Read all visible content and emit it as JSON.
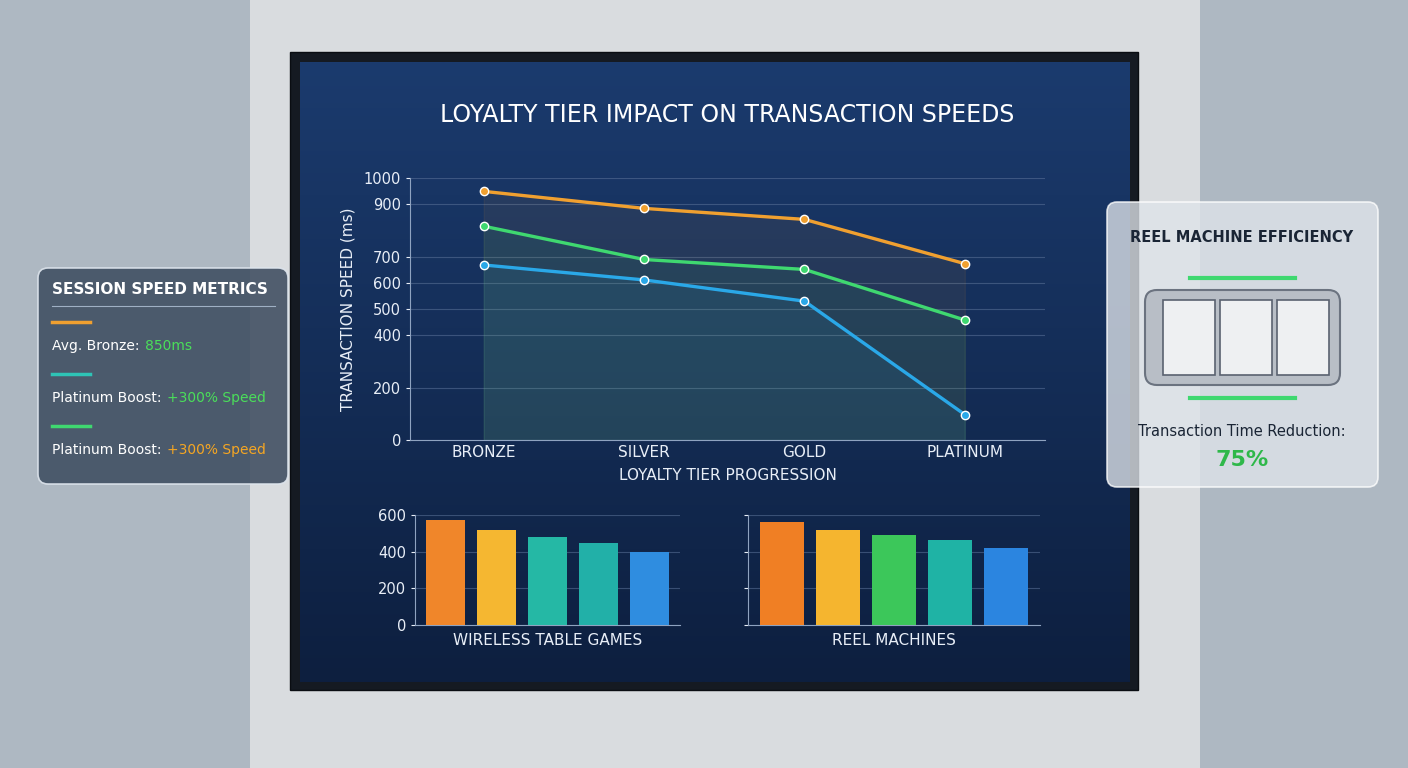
{
  "chart_data": [
    {
      "type": "line",
      "title": "LOYALTY TIER IMPACT ON TRANSACTION SPEEDS",
      "x_label": "LOYALTY TIER PROGRESSION",
      "y_label": "TRANSACTION SPEED (ms)",
      "categories": [
        "BRONZE",
        "SILVER",
        "GOLD",
        "PLATINUM"
      ],
      "series": [
        {
          "color": "#f0a030",
          "values": [
            949,
            884,
            842,
            673
          ]
        },
        {
          "color": "#3fd870",
          "values": [
            816,
            689,
            651,
            458
          ]
        },
        {
          "color": "#2aa8e8",
          "values": [
            668,
            611,
            530,
            97
          ]
        }
      ],
      "ylim": [
        0,
        1000
      ],
      "yticks": [
        0,
        200,
        400,
        500,
        600,
        700,
        900,
        1000
      ],
      "grid": true,
      "marker": "o",
      "line_style": "solid"
    },
    {
      "type": "bar",
      "x_label": "WIRELESS TABLE GAMES",
      "categories": [
        null,
        null,
        null,
        null,
        null
      ],
      "values": [
        573,
        518,
        480,
        447,
        398
      ],
      "colors": [
        "#f0862a",
        "#f5b731",
        "#25b8a5",
        "#22b0a8",
        "#2f8de0"
      ],
      "ylim": [
        0,
        600
      ],
      "yticks": [
        0,
        200,
        400,
        600
      ],
      "grid": true,
      "tick_labels": "y"
    },
    {
      "type": "bar",
      "x_label": "REEL MACHINES",
      "categories": [
        null,
        null,
        null,
        null,
        null
      ],
      "values": [
        562,
        518,
        491,
        464,
        420
      ],
      "colors": [
        "#f07f24",
        "#f5b52f",
        "#3cc75a",
        "#1fb3a5",
        "#2b85e0"
      ],
      "ylim": [
        0,
        600
      ],
      "yticks": [
        0,
        200,
        400,
        600
      ],
      "grid": true,
      "tick_labels": false
    }
  ],
  "panels": {
    "session_speed_metrics": {
      "title": "SESSION SPEED METRICS",
      "items": [
        {
          "color": "#f0a030",
          "label": "Avg. Bronze:",
          "value": "850ms"
        },
        {
          "color": "#2ec4b6",
          "label": "Platinum Boost:",
          "value": "+300% Speed"
        },
        {
          "color": "#3fd870",
          "label": "Platinum Boost:",
          "value": "+300% Speed"
        }
      ]
    },
    "reel_machine_efficiency": {
      "title": "REEL MACHINE EFFICIENCY",
      "label": "Transaction Time Reduction:",
      "value": "75%"
    }
  }
}
